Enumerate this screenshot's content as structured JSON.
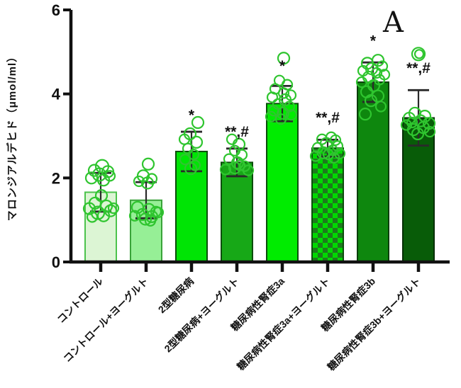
{
  "panel_label": "A",
  "colors": {
    "background": "#ffffff",
    "axis": "#111111",
    "error_bar": "#2a2a2a",
    "scatter_stroke": "#2fc52f",
    "annotation": "#111111"
  },
  "chart_data": {
    "type": "bar",
    "title": "",
    "xlabel": "",
    "ylabel": "マロンジアルデヒド（μmol/ml）",
    "ylim": [
      0,
      6
    ],
    "yticks": [
      0,
      2,
      4,
      6
    ],
    "grid": false,
    "legend": null,
    "categories": [
      "コントロール",
      "コントロール+ヨーグルト",
      "2型糖尿病",
      "2型糖尿病+ヨーグルト",
      "糖尿病性腎症3a",
      "糖尿病性腎症3a+ヨーグルト",
      "糖尿病性腎症3b",
      "糖尿病性腎症3b+ヨーグルト"
    ],
    "values": [
      1.66,
      1.47,
      2.63,
      2.37,
      3.77,
      2.71,
      4.28,
      3.43
    ],
    "errors": [
      0.46,
      0.43,
      0.47,
      0.33,
      0.42,
      0.2,
      0.47,
      0.66
    ],
    "significance": [
      "",
      "",
      "*",
      "**,#",
      "*",
      "**,#",
      "*",
      "**,#"
    ],
    "significance_y": [
      null,
      null,
      3.38,
      2.98,
      4.55,
      3.32,
      5.15,
      4.5
    ],
    "bar_fills": [
      "#dcf5d4",
      "#96ef96",
      "#00e405",
      "#17a817",
      "#00ec00",
      "checker",
      "#0e870e",
      "#085c08"
    ],
    "bar_borders": [
      "#4cc34c",
      "#3aa33a",
      "#0b4d0b",
      "#0b4d0b",
      "#0b4d0b",
      "#0b4d0b",
      "#073f07",
      "#062f06"
    ],
    "checker_colors": [
      "#00d900",
      "#1d7a1d"
    ],
    "scatter": [
      [
        [
          2.28,
          2,
          9
        ],
        [
          2.18,
          -9,
          8
        ],
        [
          2.15,
          10,
          8
        ],
        [
          2.08,
          -2,
          9
        ],
        [
          2.0,
          -13,
          8
        ],
        [
          2.05,
          13,
          7
        ],
        [
          1.95,
          4,
          8
        ],
        [
          1.58,
          1,
          8
        ],
        [
          1.4,
          -8,
          8
        ],
        [
          1.33,
          8,
          8
        ],
        [
          1.27,
          -16,
          8
        ],
        [
          1.22,
          14,
          8
        ],
        [
          1.17,
          -4,
          9
        ],
        [
          1.1,
          4,
          8
        ],
        [
          1.28,
          18,
          7
        ],
        [
          1.07,
          -12,
          7
        ]
      ],
      [
        [
          2.33,
          3,
          8
        ],
        [
          2.05,
          -4,
          8
        ],
        [
          1.98,
          8,
          7
        ],
        [
          1.92,
          -10,
          7
        ],
        [
          1.88,
          2,
          8
        ],
        [
          1.3,
          -12,
          8
        ],
        [
          1.25,
          4,
          8
        ],
        [
          1.2,
          14,
          7
        ],
        [
          1.13,
          -5,
          8
        ],
        [
          1.08,
          8,
          8
        ],
        [
          1.02,
          -1,
          8
        ],
        [
          1.1,
          -16,
          7
        ],
        [
          1.18,
          17,
          7
        ],
        [
          0.98,
          6,
          7
        ]
      ],
      [
        [
          3.32,
          9,
          8
        ],
        [
          3.05,
          -2,
          8
        ],
        [
          2.92,
          -10,
          7
        ],
        [
          2.85,
          7,
          8
        ],
        [
          2.7,
          -5,
          7
        ],
        [
          2.56,
          3,
          7
        ],
        [
          2.44,
          -9,
          7
        ],
        [
          2.3,
          5,
          7
        ],
        [
          2.22,
          -1,
          8
        ]
      ],
      [
        [
          2.92,
          -7,
          7
        ],
        [
          2.8,
          3,
          8
        ],
        [
          2.65,
          -3,
          7
        ],
        [
          2.55,
          7,
          7
        ],
        [
          2.45,
          -11,
          7
        ],
        [
          2.36,
          1,
          8
        ],
        [
          2.28,
          11,
          7
        ],
        [
          2.2,
          -16,
          7
        ],
        [
          2.18,
          16,
          7
        ],
        [
          2.24,
          -3,
          8
        ],
        [
          2.3,
          4,
          7
        ]
      ],
      [
        [
          4.85,
          2,
          8
        ],
        [
          4.32,
          -4,
          7
        ],
        [
          4.22,
          7,
          7
        ],
        [
          4.12,
          -10,
          7
        ],
        [
          4.02,
          2,
          7
        ],
        [
          3.97,
          12,
          7
        ],
        [
          3.92,
          -14,
          7
        ],
        [
          3.86,
          4,
          8
        ],
        [
          3.76,
          -6,
          7
        ],
        [
          3.7,
          10,
          7
        ],
        [
          3.6,
          -12,
          7
        ],
        [
          3.54,
          1,
          8
        ],
        [
          3.46,
          -16,
          7
        ],
        [
          3.5,
          13,
          7
        ],
        [
          3.4,
          -2,
          7
        ]
      ],
      [
        [
          2.97,
          5,
          7
        ],
        [
          2.92,
          -8,
          7
        ],
        [
          2.9,
          11,
          7
        ],
        [
          2.82,
          -2,
          8
        ],
        [
          2.76,
          14,
          7
        ],
        [
          2.72,
          -14,
          7
        ],
        [
          2.66,
          7,
          7
        ],
        [
          2.6,
          -6,
          8
        ],
        [
          2.56,
          1,
          7
        ],
        [
          2.52,
          -17,
          7
        ],
        [
          2.58,
          17,
          7
        ],
        [
          2.48,
          9,
          7
        ]
      ],
      [
        [
          4.8,
          7,
          8
        ],
        [
          4.73,
          -8,
          8
        ],
        [
          4.66,
          13,
          7
        ],
        [
          4.6,
          -2,
          8
        ],
        [
          4.55,
          -14,
          7
        ],
        [
          4.5,
          5,
          7
        ],
        [
          4.46,
          16,
          7
        ],
        [
          4.4,
          -6,
          8
        ],
        [
          4.34,
          9,
          7
        ],
        [
          4.28,
          -16,
          7
        ],
        [
          4.2,
          1,
          8
        ],
        [
          4.05,
          -9,
          8
        ],
        [
          3.95,
          7,
          8
        ],
        [
          3.84,
          -3,
          8
        ],
        [
          3.7,
          11,
          7
        ],
        [
          3.52,
          -11,
          8
        ]
      ],
      [
        [
          4.95,
          0,
          9
        ],
        [
          4.95,
          1,
          6
        ],
        [
          3.54,
          -5,
          8
        ],
        [
          3.47,
          9,
          8
        ],
        [
          3.42,
          -13,
          8
        ],
        [
          3.36,
          3,
          8
        ],
        [
          3.3,
          15,
          8
        ],
        [
          3.26,
          -17,
          7
        ],
        [
          3.2,
          7,
          8
        ],
        [
          3.15,
          -7,
          8
        ],
        [
          3.1,
          16,
          7
        ],
        [
          3.05,
          -1,
          8
        ],
        [
          3.32,
          -9,
          7
        ]
      ]
    ]
  }
}
